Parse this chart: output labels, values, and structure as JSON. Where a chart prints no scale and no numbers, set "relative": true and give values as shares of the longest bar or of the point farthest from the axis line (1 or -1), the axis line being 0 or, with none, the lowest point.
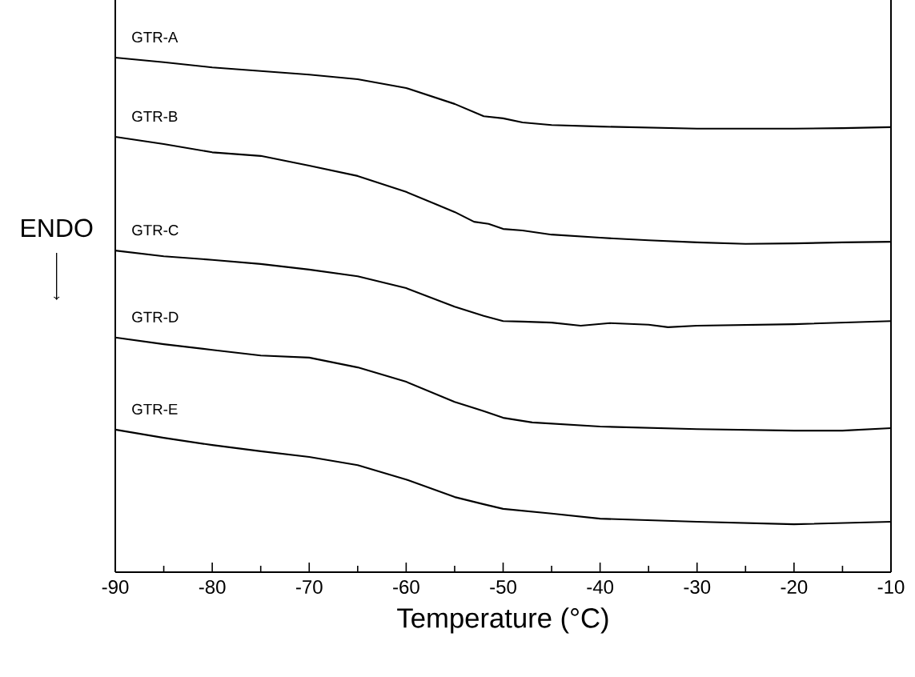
{
  "chart_data": {
    "type": "line",
    "relative": true,
    "xlabel": "Temperature (°C)",
    "xlim": [
      -90,
      -10
    ],
    "xticks": [
      -90,
      -80,
      -70,
      -60,
      -50,
      -40,
      -30,
      -20,
      -10
    ],
    "line_style": "solid",
    "annotations": [
      "ENDO"
    ],
    "series": [
      {
        "name": "GTR-A",
        "color": "#000000",
        "x": [
          -90,
          -85,
          -80,
          -75,
          -70,
          -65,
          -60,
          -55,
          -52,
          -50,
          -48,
          -45,
          -40,
          -30,
          -20,
          -15,
          -10
        ],
        "values": [
          1.0,
          0.991,
          0.981,
          0.974,
          0.967,
          0.958,
          0.941,
          0.91,
          0.886,
          0.882,
          0.874,
          0.869,
          0.866,
          0.862,
          0.862,
          0.863,
          0.865
        ]
      },
      {
        "name": "GTR-B",
        "color": "#000000",
        "x": [
          -90,
          -85,
          -80,
          -75,
          -70,
          -65,
          -60,
          -55,
          -53,
          -51.5,
          -50,
          -48,
          -45,
          -40,
          -35,
          -30,
          -25,
          -20,
          -15,
          -10
        ],
        "values": [
          0.846,
          0.832,
          0.816,
          0.809,
          0.79,
          0.77,
          0.739,
          0.7,
          0.681,
          0.677,
          0.667,
          0.664,
          0.656,
          0.65,
          0.645,
          0.641,
          0.638,
          0.639,
          0.641,
          0.642
        ]
      },
      {
        "name": "GTR-C",
        "color": "#000000",
        "x": [
          -90,
          -85,
          -80,
          -75,
          -70,
          -65,
          -60,
          -55,
          -52,
          -50,
          -48,
          -45,
          -42,
          -39,
          -35,
          -33,
          -30,
          -20,
          -10
        ],
        "values": [
          0.625,
          0.614,
          0.607,
          0.599,
          0.588,
          0.575,
          0.552,
          0.516,
          0.498,
          0.488,
          0.487,
          0.485,
          0.479,
          0.484,
          0.481,
          0.476,
          0.479,
          0.482,
          0.488
        ]
      },
      {
        "name": "GTR-D",
        "color": "#000000",
        "x": [
          -90,
          -85,
          -80,
          -75,
          -70,
          -65,
          -60,
          -55,
          -52,
          -50,
          -47,
          -40,
          -30,
          -20,
          -15,
          -10
        ],
        "values": [
          0.456,
          0.443,
          0.432,
          0.421,
          0.417,
          0.398,
          0.37,
          0.331,
          0.313,
          0.3,
          0.291,
          0.283,
          0.278,
          0.275,
          0.275,
          0.28
        ]
      },
      {
        "name": "GTR-E",
        "color": "#000000",
        "x": [
          -90,
          -85,
          -80,
          -75,
          -70,
          -65,
          -60,
          -55,
          -52,
          -50,
          -45,
          -40,
          -30,
          -20,
          -10
        ],
        "values": [
          0.277,
          0.261,
          0.247,
          0.235,
          0.224,
          0.208,
          0.18,
          0.146,
          0.132,
          0.123,
          0.114,
          0.104,
          0.098,
          0.093,
          0.098
        ]
      }
    ]
  }
}
